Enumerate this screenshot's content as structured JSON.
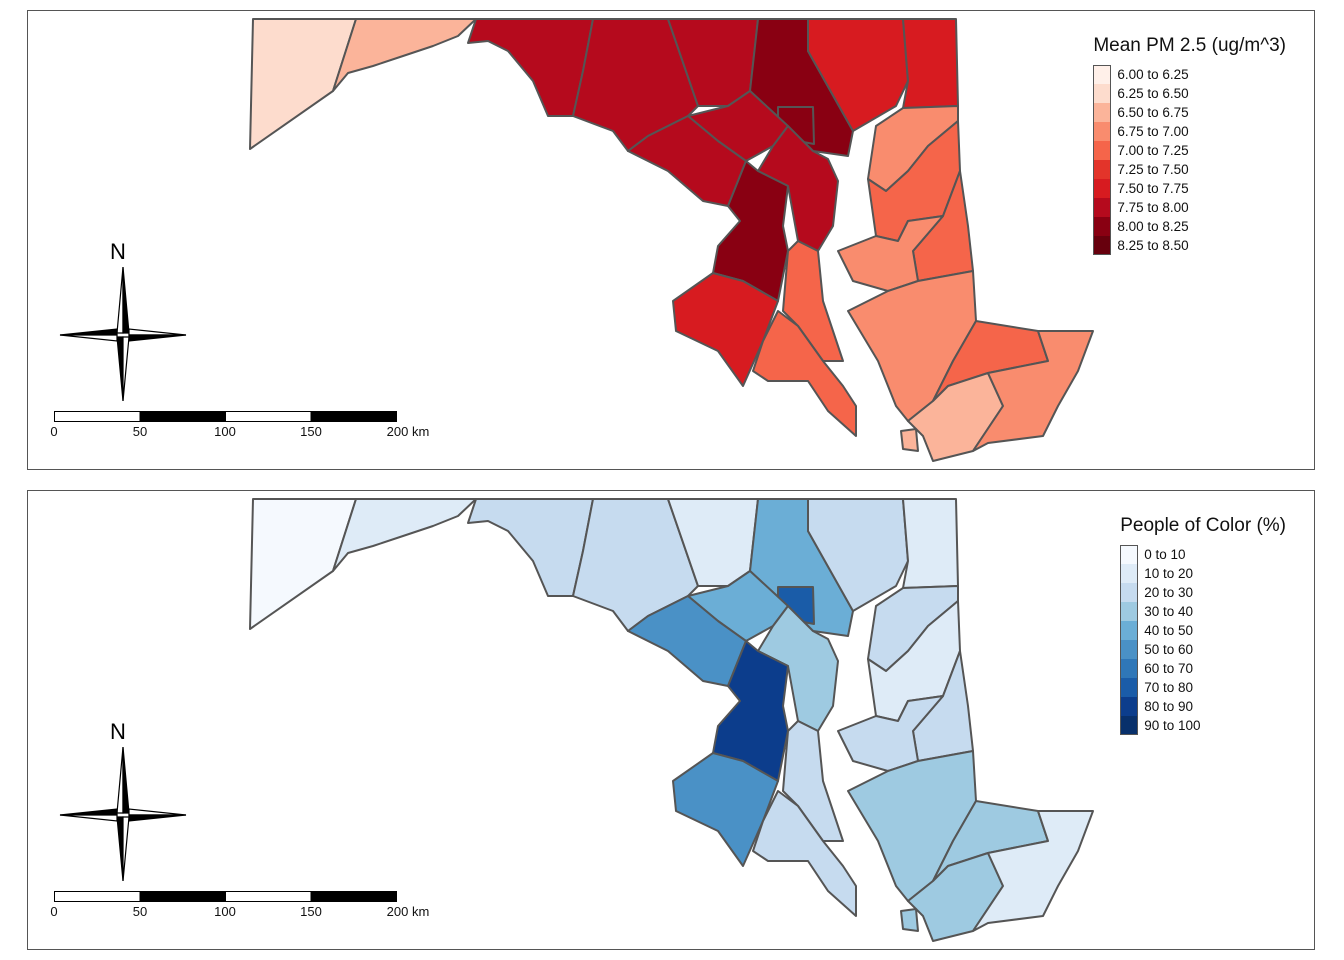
{
  "maps": [
    {
      "id": "pm25",
      "legend_title": "Mean PM 2.5 (ug/m^3)",
      "classes": [
        {
          "label": "6.00 to 6.25",
          "color": "#fff0e9"
        },
        {
          "label": "6.25 to 6.50",
          "color": "#fddccd"
        },
        {
          "label": "6.50 to 6.75",
          "color": "#fbb49a"
        },
        {
          "label": "6.75 to 7.00",
          "color": "#f98c6e"
        },
        {
          "label": "7.00 to 7.25",
          "color": "#f5654a"
        },
        {
          "label": "7.25 to 7.50",
          "color": "#e3342a"
        },
        {
          "label": "7.50 to 7.75",
          "color": "#d71b20"
        },
        {
          "label": "7.75 to 8.00",
          "color": "#b50a1d"
        },
        {
          "label": "8.00 to 8.25",
          "color": "#890012"
        },
        {
          "label": "8.25 to 8.50",
          "color": "#67000d"
        }
      ]
    },
    {
      "id": "poc",
      "legend_title": "People of Color (%)",
      "classes": [
        {
          "label": "0 to 10",
          "color": "#f5f9fe"
        },
        {
          "label": "10 to 20",
          "color": "#deebf7"
        },
        {
          "label": "20 to 30",
          "color": "#c6dbef"
        },
        {
          "label": "30 to 40",
          "color": "#9ecae1"
        },
        {
          "label": "40 to 50",
          "color": "#6baed6"
        },
        {
          "label": "50 to 60",
          "color": "#4a91c6"
        },
        {
          "label": "60 to 70",
          "color": "#2f77b8"
        },
        {
          "label": "70 to 80",
          "color": "#1a5ca8"
        },
        {
          "label": "80 to 90",
          "color": "#0c3d8c"
        },
        {
          "label": "90 to 100",
          "color": "#08306b"
        }
      ]
    }
  ],
  "north_label": "N",
  "scale_bar": {
    "ticks": [
      "0",
      "50",
      "100",
      "150",
      "200 km"
    ]
  }
}
